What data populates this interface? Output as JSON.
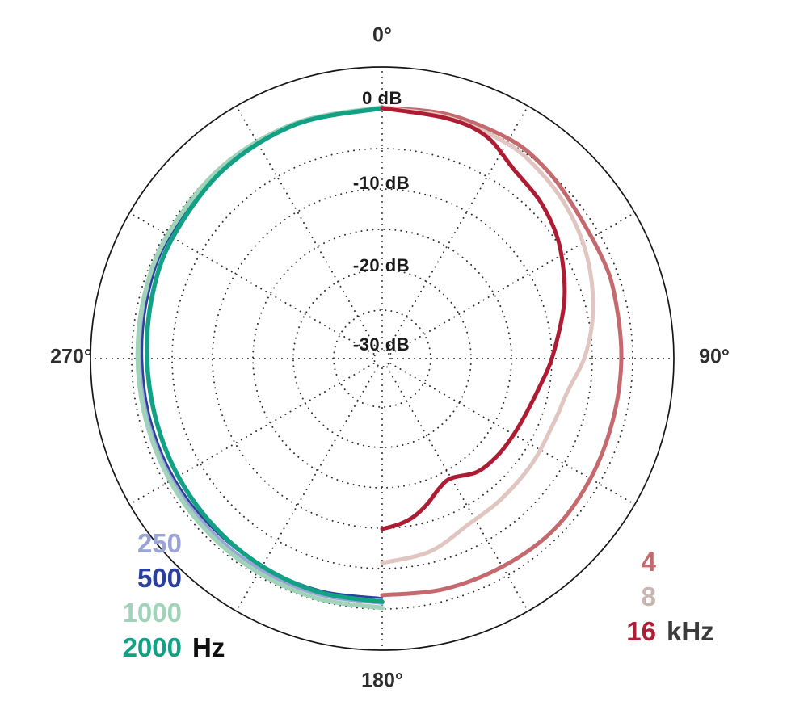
{
  "chart_data": {
    "type": "line",
    "projection": "polar",
    "title": "",
    "description_visible": "microphone polar response curves, low frequencies on left half, high frequencies on right half",
    "radial_axis": {
      "unit": "dB",
      "tick_labels": [
        "0 dB",
        "-10 dB",
        "-20 dB",
        "-30 dB"
      ],
      "ticks_db": [
        0,
        -10,
        -20,
        -30
      ],
      "grid_circles_db": [
        0,
        -5,
        -10,
        -15,
        -20,
        -25,
        -30
      ],
      "range_db": [
        0,
        -31
      ],
      "grid_style": "dotted"
    },
    "angular_axis": {
      "unit": "deg",
      "labels": [
        "0°",
        "90°",
        "180°",
        "270°"
      ],
      "label_angles": [
        0,
        90,
        180,
        270
      ],
      "spoke_step_deg": 30,
      "zero_position": "top",
      "direction": "clockwise",
      "grid_style": "dotted"
    },
    "series": [
      {
        "name": "250 Hz",
        "legend_label": "250",
        "color": "#9aa4d7",
        "width": 4,
        "points_deg_db": [
          [
            180,
            -0.7
          ],
          [
            195,
            -0.75
          ],
          [
            210,
            -0.85
          ],
          [
            225,
            -0.95
          ],
          [
            240,
            -1.05
          ],
          [
            255,
            -1.1
          ],
          [
            270,
            -1.05
          ],
          [
            285,
            -0.8
          ],
          [
            300,
            -0.5
          ],
          [
            320,
            -0.15
          ],
          [
            340,
            0.0
          ],
          [
            360,
            0.05
          ]
        ]
      },
      {
        "name": "500 Hz",
        "legend_label": "500",
        "color": "#2a3f9f",
        "width": 2.5,
        "points_deg_db": [
          [
            180,
            -1.35
          ],
          [
            195,
            -1.3
          ],
          [
            210,
            -1.3
          ],
          [
            225,
            -1.3
          ],
          [
            240,
            -1.3
          ],
          [
            255,
            -1.35
          ],
          [
            270,
            -1.3
          ],
          [
            285,
            -1.0
          ],
          [
            300,
            -0.65
          ],
          [
            320,
            -0.25
          ],
          [
            340,
            -0.05
          ],
          [
            360,
            0.0
          ]
        ]
      },
      {
        "name": "1000 Hz",
        "legend_label": "1000",
        "color": "#a0d3ba",
        "width": 5.5,
        "points_deg_db": [
          [
            180,
            -0.15
          ],
          [
            195,
            -0.25
          ],
          [
            210,
            -0.4
          ],
          [
            225,
            -0.55
          ],
          [
            240,
            -0.7
          ],
          [
            255,
            -0.8
          ],
          [
            270,
            -0.75
          ],
          [
            285,
            -0.55
          ],
          [
            300,
            -0.35
          ],
          [
            320,
            -0.05
          ],
          [
            340,
            0.05
          ],
          [
            360,
            0.1
          ]
        ]
      },
      {
        "name": "2000 Hz",
        "legend_label": "2000",
        "color": "#12a184",
        "width": 5.5,
        "points_deg_db": [
          [
            180,
            -0.9
          ],
          [
            195,
            -1.05
          ],
          [
            210,
            -1.3
          ],
          [
            225,
            -1.6
          ],
          [
            240,
            -1.85
          ],
          [
            255,
            -2.0
          ],
          [
            270,
            -1.9
          ],
          [
            285,
            -1.5
          ],
          [
            300,
            -1.05
          ],
          [
            320,
            -0.45
          ],
          [
            340,
            -0.1
          ],
          [
            360,
            0.0
          ]
        ]
      },
      {
        "name": "4 kHz",
        "legend_label": "4",
        "color": "#c4696e",
        "width": 5,
        "points_deg_db": [
          [
            0,
            0.05
          ],
          [
            15,
            0.3
          ],
          [
            30,
            0.4
          ],
          [
            40,
            0.05
          ],
          [
            50,
            -0.65
          ],
          [
            65,
            -1.05
          ],
          [
            75,
            -1.2
          ],
          [
            90,
            -1.4
          ],
          [
            105,
            -1.45
          ],
          [
            120,
            -1.25
          ],
          [
            135,
            -1.0
          ],
          [
            150,
            -1.25
          ],
          [
            165,
            -1.45
          ],
          [
            180,
            -1.7
          ]
        ]
      },
      {
        "name": "8 kHz",
        "legend_label": "8",
        "color": "#e0c5c0",
        "width": 5,
        "points_deg_db": [
          [
            0,
            0.0
          ],
          [
            15,
            -0.05
          ],
          [
            30,
            -0.2
          ],
          [
            40,
            -0.7
          ],
          [
            50,
            -1.4
          ],
          [
            60,
            -2.3
          ],
          [
            70,
            -3.4
          ],
          [
            80,
            -4.6
          ],
          [
            90,
            -6.0
          ],
          [
            100,
            -7.7
          ],
          [
            110,
            -8.3
          ],
          [
            125,
            -8.35
          ],
          [
            140,
            -8.2
          ],
          [
            152,
            -7.9
          ],
          [
            166,
            -6.4
          ],
          [
            180,
            -5.7
          ]
        ]
      },
      {
        "name": "16 kHz",
        "legend_label": "16",
        "color": "#ad1c33",
        "width": 5,
        "points_deg_db": [
          [
            0,
            0.0
          ],
          [
            15,
            -0.2
          ],
          [
            25,
            -0.6
          ],
          [
            35,
            -2.5
          ],
          [
            45,
            -3.4
          ],
          [
            55,
            -4.6
          ],
          [
            65,
            -6.2
          ],
          [
            75,
            -7.8
          ],
          [
            90,
            -10.0
          ],
          [
            100,
            -11.2
          ],
          [
            110,
            -11.9
          ],
          [
            120,
            -12.2
          ],
          [
            130,
            -12.35
          ],
          [
            140,
            -12.7
          ],
          [
            150,
            -13.9
          ],
          [
            156,
            -13.5
          ],
          [
            163,
            -12.1
          ],
          [
            169,
            -11.0
          ],
          [
            174,
            -10.4
          ],
          [
            180,
            -9.9
          ]
        ]
      }
    ],
    "legend_position": "bottom corners"
  },
  "legend": {
    "left": {
      "unit": "Hz",
      "unit_color": "#101010",
      "rows": [
        {
          "label": "250",
          "color": "#9aa4d7"
        },
        {
          "label": "500",
          "color": "#2a3f9f"
        },
        {
          "label": "1000",
          "color": "#a0d3ba"
        },
        {
          "label": "2000",
          "color": "#12a184"
        }
      ]
    },
    "right": {
      "unit": "kHz",
      "unit_color": "#3b3b3b",
      "rows": [
        {
          "label": "4",
          "color": "#c4696e"
        },
        {
          "label": "8",
          "color": "#c7b5b1"
        },
        {
          "label": "16",
          "color": "#b01e35"
        }
      ]
    }
  }
}
